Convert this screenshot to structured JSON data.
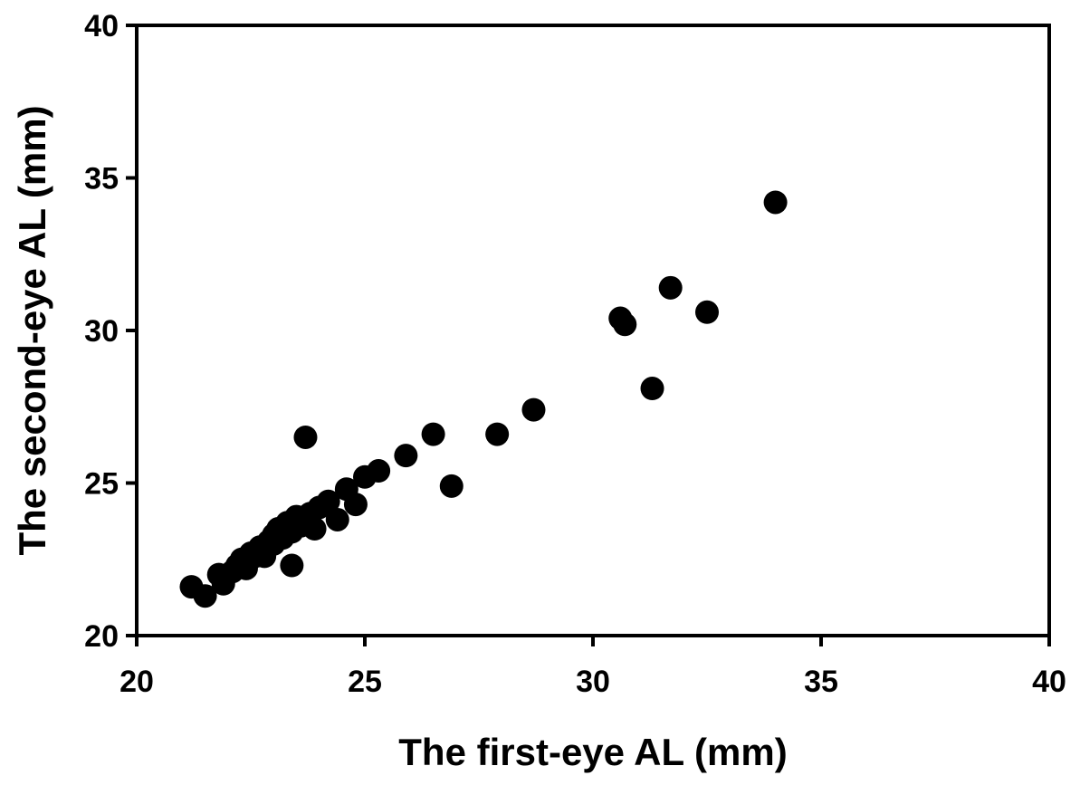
{
  "chart_data": {
    "type": "scatter",
    "title": "",
    "xlabel": "The first-eye AL (mm)",
    "ylabel": "The second-eye AL (mm)",
    "xlim": [
      20,
      40
    ],
    "ylim": [
      20,
      40
    ],
    "xticks": [
      20,
      25,
      30,
      35,
      40
    ],
    "yticks": [
      20,
      25,
      30,
      35,
      40
    ],
    "xtick_labels": [
      "20",
      "25",
      "30",
      "35",
      "40"
    ],
    "ytick_labels": [
      "20",
      "25",
      "30",
      "35",
      "40"
    ],
    "grid": false,
    "legend": "none",
    "marker_color": "#000000",
    "series": [
      {
        "points": [
          [
            21.2,
            21.6
          ],
          [
            21.5,
            21.3
          ],
          [
            21.8,
            22.0
          ],
          [
            21.9,
            21.7
          ],
          [
            22.1,
            22.1
          ],
          [
            22.2,
            22.3
          ],
          [
            22.3,
            22.5
          ],
          [
            22.4,
            22.2
          ],
          [
            22.5,
            22.7
          ],
          [
            22.6,
            22.6
          ],
          [
            22.7,
            22.9
          ],
          [
            22.8,
            22.6
          ],
          [
            22.9,
            23.1
          ],
          [
            23.0,
            23.0
          ],
          [
            23.0,
            23.3
          ],
          [
            23.1,
            23.5
          ],
          [
            23.2,
            23.2
          ],
          [
            23.3,
            23.7
          ],
          [
            23.4,
            23.4
          ],
          [
            23.4,
            22.3
          ],
          [
            23.5,
            23.9
          ],
          [
            23.6,
            23.6
          ],
          [
            23.7,
            26.5
          ],
          [
            23.8,
            24.0
          ],
          [
            23.9,
            23.5
          ],
          [
            24.0,
            24.2
          ],
          [
            24.2,
            24.4
          ],
          [
            24.4,
            23.8
          ],
          [
            24.6,
            24.8
          ],
          [
            24.8,
            24.3
          ],
          [
            25.0,
            25.2
          ],
          [
            25.3,
            25.4
          ],
          [
            25.9,
            25.9
          ],
          [
            26.5,
            26.6
          ],
          [
            26.9,
            24.9
          ],
          [
            27.9,
            26.6
          ],
          [
            28.7,
            27.4
          ],
          [
            30.6,
            30.4
          ],
          [
            30.7,
            30.2
          ],
          [
            31.3,
            28.1
          ],
          [
            31.7,
            31.4
          ],
          [
            32.5,
            30.6
          ],
          [
            34.0,
            34.2
          ]
        ]
      }
    ]
  }
}
